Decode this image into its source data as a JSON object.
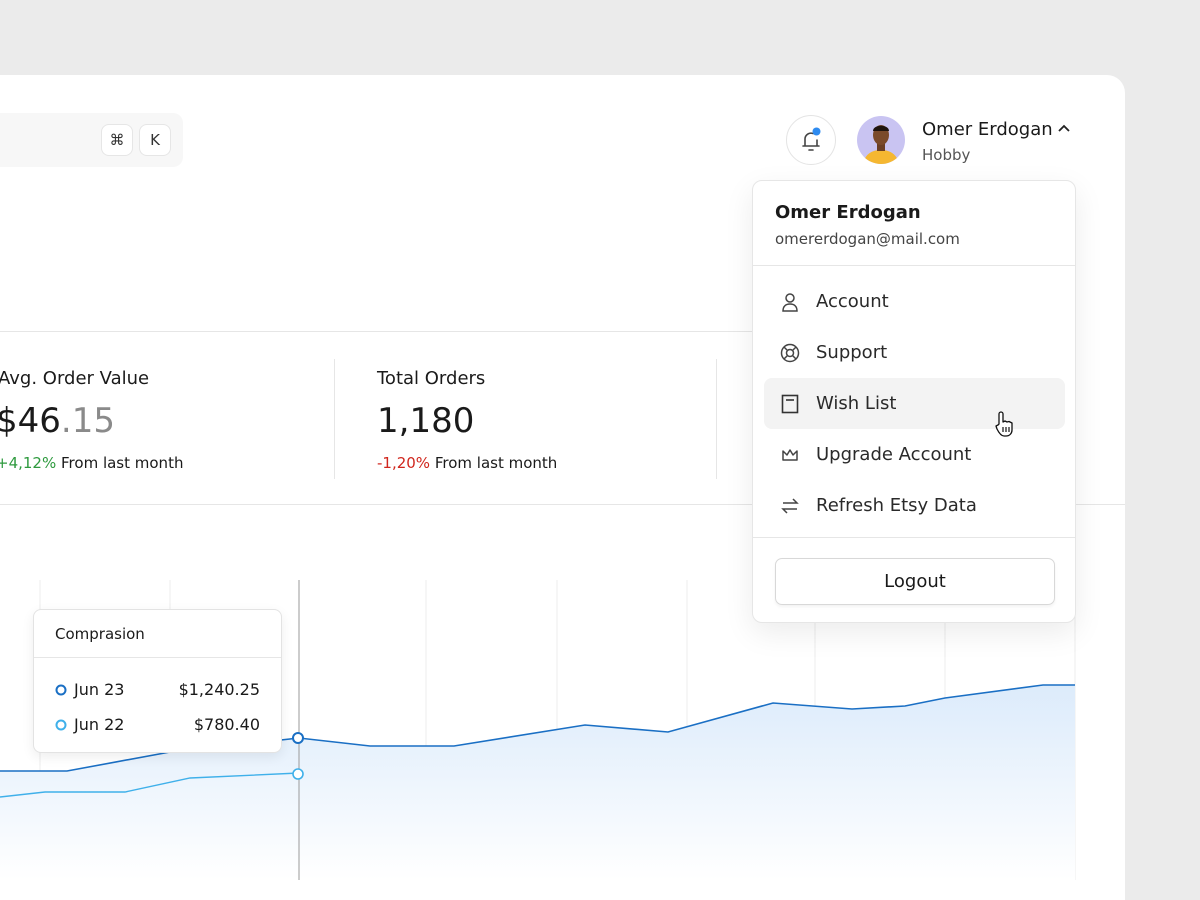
{
  "search": {
    "shortcut_cmd": "⌘",
    "shortcut_key": "K"
  },
  "user": {
    "name": "Omer Erdogan",
    "plan": "Hobby"
  },
  "stats": [
    {
      "label": "Avg. Order Value",
      "value_main": "$46",
      "value_decimal": ".15",
      "change": "+4,12%",
      "change_note": "From last month"
    },
    {
      "label": "Total Orders",
      "value": "1,180",
      "change": "-1,20%",
      "change_note": "From last month"
    }
  ],
  "tooltip": {
    "title": "Comprasion",
    "rows": [
      {
        "date": "Jun 23",
        "value": "$1,240.25"
      },
      {
        "date": "Jun 22",
        "value": "$780.40"
      }
    ]
  },
  "dropdown": {
    "name": "Omer Erdogan",
    "email": "omererdogan@mail.com",
    "items": [
      "Account",
      "Support",
      "Wish List",
      "Upgrade Account",
      "Refresh Etsy Data"
    ],
    "logout": "Logout"
  }
}
